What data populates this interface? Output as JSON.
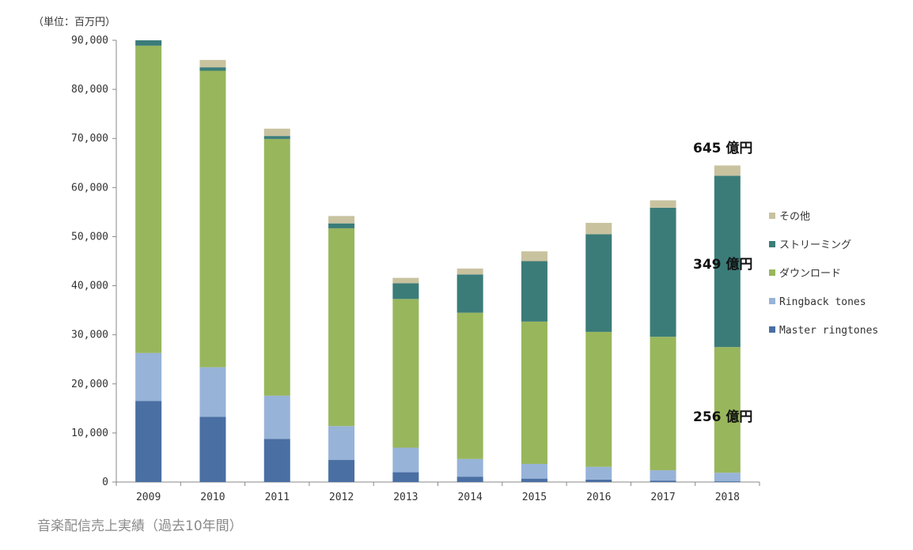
{
  "caption": "音楽配信売上実績（過去10年間）",
  "chart_data": {
    "type": "bar",
    "stacked": true,
    "unit_label": "（単位：百万円）",
    "categories": [
      "2009",
      "2010",
      "2011",
      "2012",
      "2013",
      "2014",
      "2015",
      "2016",
      "2017",
      "2018"
    ],
    "ylim": [
      0,
      90000
    ],
    "yticks": [
      0,
      10000,
      20000,
      30000,
      40000,
      50000,
      60000,
      70000,
      80000,
      90000
    ],
    "ytick_labels": [
      "0",
      "10,000",
      "20,000",
      "30,000",
      "40,000",
      "50,000",
      "60,000",
      "70,000",
      "80,000",
      "90,000"
    ],
    "series": [
      {
        "name": "Master ringtones",
        "color": "#4a6fa3",
        "values": [
          16500,
          13300,
          8800,
          4500,
          2000,
          1100,
          700,
          500,
          300,
          150
        ]
      },
      {
        "name": "Ringback tones",
        "color": "#97b3d8",
        "values": [
          9800,
          10100,
          8800,
          6900,
          5000,
          3600,
          3000,
          2600,
          2100,
          1750
        ]
      },
      {
        "name": "ダウンロード",
        "color": "#98b65c",
        "values": [
          62600,
          60400,
          52300,
          40300,
          30300,
          29800,
          29000,
          27500,
          27200,
          25600
        ]
      },
      {
        "name": "ストリーミング",
        "color": "#3b7c79",
        "values": [
          1100,
          700,
          600,
          1000,
          3200,
          7800,
          12300,
          19900,
          26300,
          34900
        ]
      },
      {
        "name": "その他",
        "color": "#c8c29f",
        "values": [
          0,
          1500,
          1500,
          1500,
          1100,
          1200,
          2000,
          2300,
          1500,
          2100
        ]
      }
    ],
    "legend_order": [
      "その他",
      "ストリーミング",
      "ダウンロード",
      "Ringback tones",
      "Master ringtones"
    ],
    "legend_position": "right",
    "annotations": [
      "645 億円",
      "349 億円",
      "256 億円"
    ],
    "grid": false
  }
}
